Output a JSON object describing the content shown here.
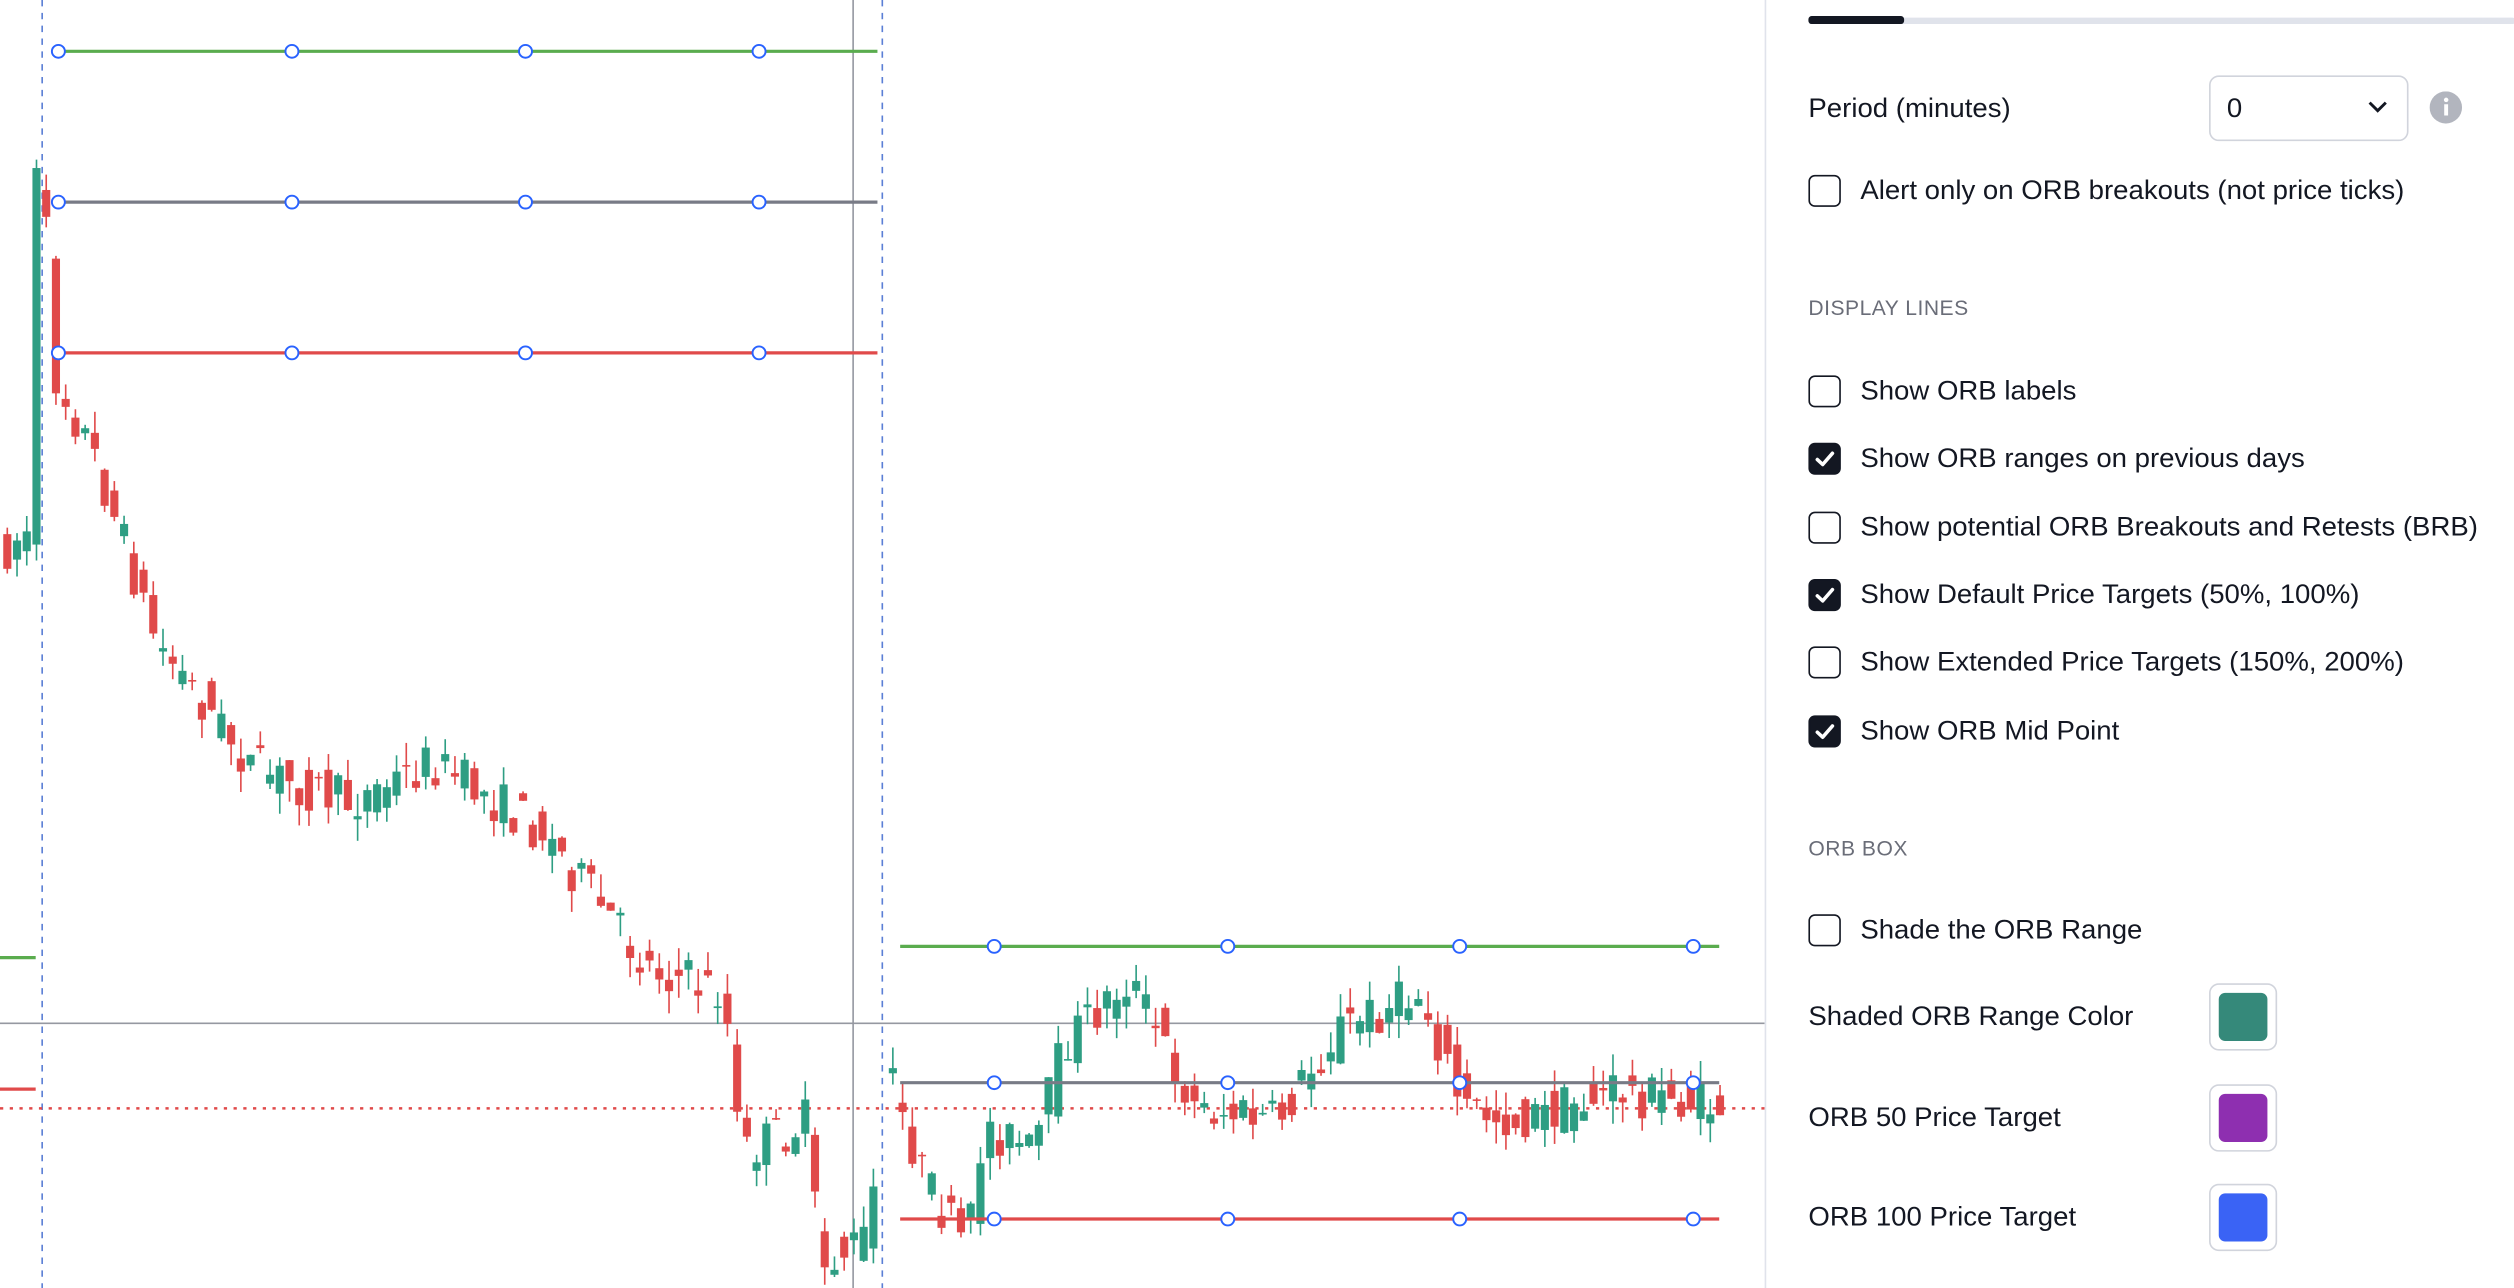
{
  "settings": {
    "period": {
      "label": "Period (minutes)",
      "value": "0"
    },
    "alert": {
      "label": "Alert only on ORB breakouts (not price ticks)",
      "checked": false
    },
    "display_lines": {
      "heading": "DISPLAY LINES",
      "items": [
        {
          "label": "Show ORB labels",
          "checked": false
        },
        {
          "label": "Show ORB ranges on previous days",
          "checked": true
        },
        {
          "label": "Show potential ORB Breakouts and Retests (BRB)",
          "checked": false
        },
        {
          "label": "Show Default Price Targets (50%, 100%)",
          "checked": true
        },
        {
          "label": "Show Extended Price Targets (150%, 200%)",
          "checked": false
        },
        {
          "label": "Show ORB Mid Point",
          "checked": true
        }
      ]
    },
    "orb_box": {
      "heading": "ORB BOX",
      "shade": {
        "label": "Shade the ORB Range",
        "checked": false
      },
      "colors": [
        {
          "label": "Shaded ORB Range Color",
          "color": "#35897a"
        },
        {
          "label": "ORB 50 Price Target",
          "color": "#8e2fb0"
        },
        {
          "label": "ORB 100 Price Target",
          "color": "#3a63f5"
        }
      ]
    }
  }
}
